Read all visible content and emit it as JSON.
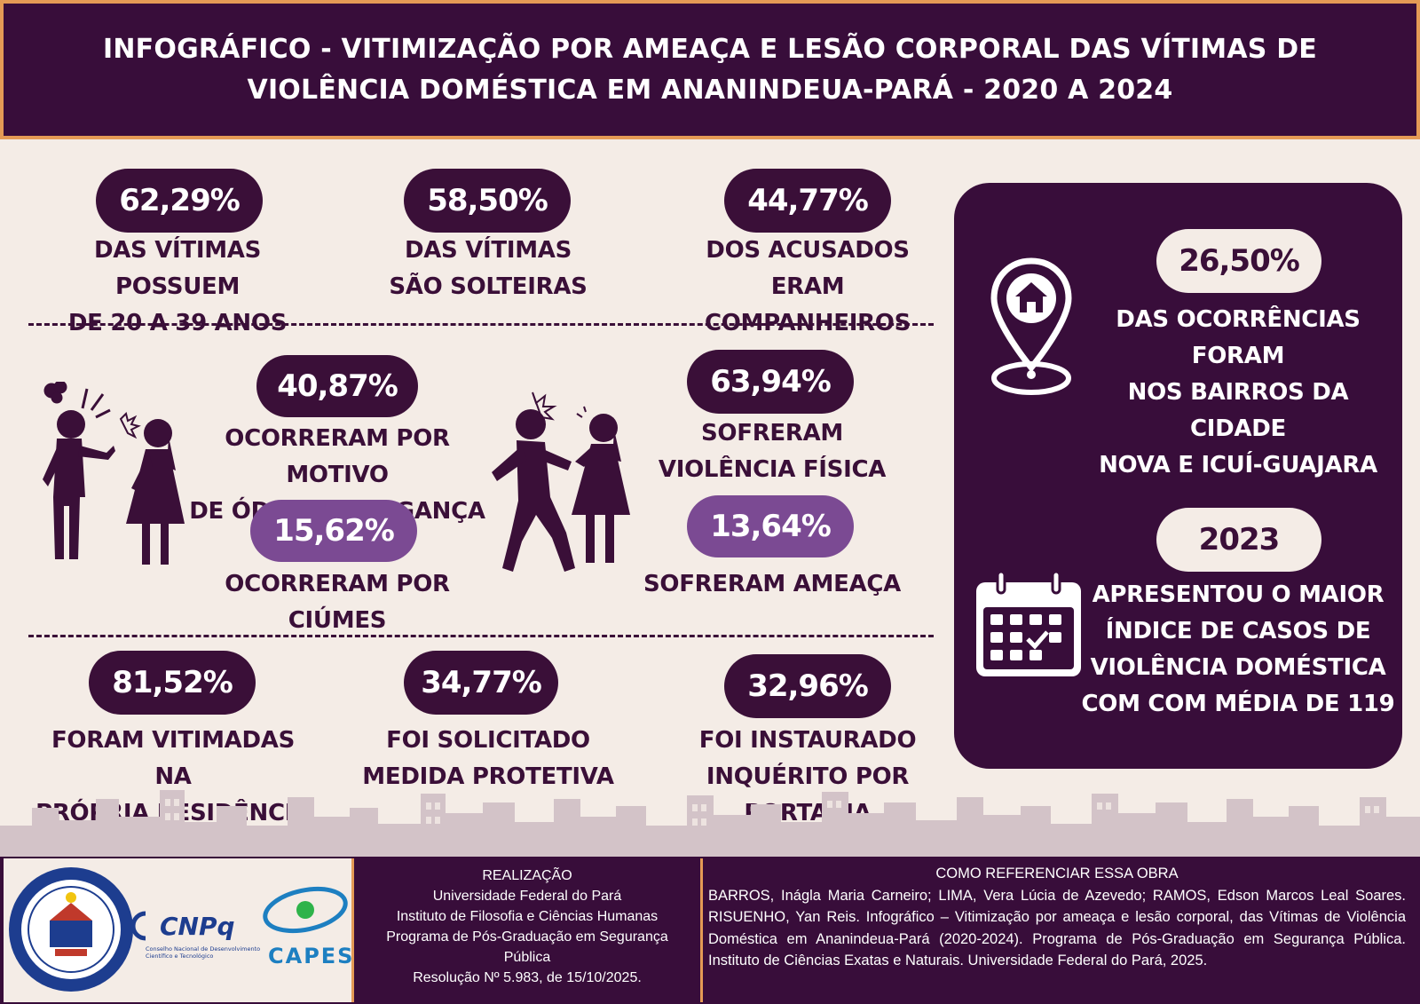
{
  "header": {
    "title": "INFOGRÁFICO - VITIMIZAÇÃO POR AMEAÇA E LESÃO CORPORAL DAS VÍTIMAS DE VIOLÊNCIA DOMÉSTICA EM ANANINDEUA-PARÁ - 2020 A 2024"
  },
  "stats_top": [
    {
      "value": "62,29%",
      "line1": "DAS VÍTIMAS POSSUEM",
      "line2": "DE 20 A 39 ANOS"
    },
    {
      "value": "58,50%",
      "line1": "DAS VÍTIMAS",
      "line2": "SÃO SOLTEIRAS"
    },
    {
      "value": "44,77%",
      "line1": "DOS ACUSADOS",
      "line2": "ERAM COMPANHEIROS"
    }
  ],
  "stats_middle": {
    "motive_hate": {
      "value": "40,87%",
      "line1": "OCORRERAM POR MOTIVO",
      "line2": "DE ÓDIO OU VINGANÇA"
    },
    "motive_jealousy": {
      "value": "15,62%",
      "line1": "OCORRERAM POR CIÚMES"
    },
    "physical": {
      "value": "63,94%",
      "line1": "SOFRERAM",
      "line2": "VIOLÊNCIA FÍSICA"
    },
    "threat": {
      "value": "13,64%",
      "line1": "SOFRERAM AMEAÇA"
    }
  },
  "stats_bottom": [
    {
      "value": "81,52%",
      "line1": "FORAM VITIMADAS NA",
      "line2": "PRÓPRIA RESIDÊNCIA"
    },
    {
      "value": "34,77%",
      "line1": "FOI SOLICITADO",
      "line2": "MEDIDA PROTETIVA"
    },
    {
      "value": "32,96%",
      "line1": "FOI INSTAURADO",
      "line2": "INQUÉRITO POR PORTARIA"
    }
  ],
  "panel": {
    "location": {
      "value": "26,50%",
      "line1": "DAS OCORRÊNCIAS FORAM",
      "line2": "NOS BAIRROS DA CIDADE",
      "line3": "NOVA E ICUÍ-GUAJARA",
      "icon": "home-location-pin-icon"
    },
    "year": {
      "value": "2023",
      "line1": "APRESENTOU O MAIOR",
      "line2": "ÍNDICE DE CASOS DE",
      "line3": "VIOLÊNCIA DOMÉSTICA",
      "line4": "COM COM MÉDIA DE 119",
      "icon": "calendar-check-icon"
    }
  },
  "footer": {
    "logos": {
      "ufpa_ring_text": "UNIVERSIDADE FEDERAL DO PARÁ",
      "ufpa_program_text": "PROGRAMA DE PÓS-GRADUAÇÃO EM SEGURANÇA PÚBLICA",
      "cnpq": "CNPq",
      "cnpq_sub1": "Conselho Nacional de Desenvolvimento",
      "cnpq_sub2": "Científico e Tecnológico",
      "capes": "CAPES"
    },
    "realizacao": {
      "title": "REALIZAÇÃO",
      "line1": "Universidade Federal do Pará",
      "line2": "Instituto de Filosofia e Ciências Humanas",
      "line3": "Programa de Pós-Graduação em Segurança",
      "line4": "Pública",
      "line5": "Resolução Nº 5.983, de 15/10/2025."
    },
    "referencia": {
      "title": "COMO REFERENCIAR ESSA OBRA",
      "text": "BARROS, Inágla Maria Carneiro; LIMA, Vera Lúcia de Azevedo; RAMOS, Edson Marcos Leal Soares. RISUENHO, Yan Reis. Infográfico – Vitimização por ameaça e lesão corporal, das Vítimas de Violência Doméstica em Ananindeua-Pará (2020-2024). Programa de Pós-Graduação em Segurança Pública. Instituto de Ciências Exatas e Naturais. Universidade Federal do Pará, 2025."
    }
  },
  "colors": {
    "primary": "#380d3a",
    "accent": "#e49a55",
    "highlight": "#7b4a93",
    "background": "#f4ece6",
    "skyline": "#c8b5bd"
  }
}
